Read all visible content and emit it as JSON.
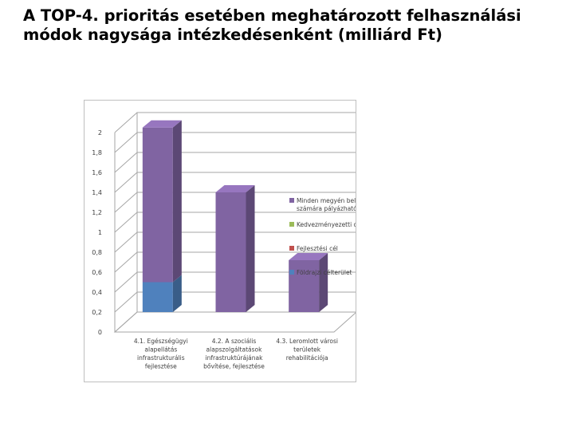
{
  "title": "A TOP-4. prioritás esetében meghatározott felhasználási módok nagysága intézkedésenként (milliárd Ft)",
  "chart_data": {
    "type": "bar",
    "stacked": true,
    "three_d": true,
    "categories": [
      [
        "4.1. Egészségügyi",
        "alapellátás",
        "infrastrukturális",
        "fejlesztése"
      ],
      [
        "4.2. A szociális",
        "alapszolgáltatások",
        "infrastruktúrájának",
        "bővítése, fejlesztése"
      ],
      [
        "4.3. Leromlott városi",
        "területek",
        "rehabilitációja"
      ]
    ],
    "series": [
      {
        "name": "Földrajzi célterület",
        "color": "#4f81bd",
        "values": [
          0.3,
          0,
          0
        ]
      },
      {
        "name": "Fejlesztési cél",
        "color": "#c0504d",
        "values": [
          0,
          0,
          0
        ]
      },
      {
        "name": "Kedvezményezetti csoport",
        "color": "#9bbb59",
        "values": [
          0,
          0,
          0
        ]
      },
      {
        "name": "Minden megyén belüli jogosult számára pályázható",
        "color": "#8064a2",
        "values": [
          1.55,
          1.2,
          0.52
        ]
      }
    ],
    "legend_order": [
      3,
      2,
      1,
      0
    ],
    "ylim": [
      0,
      2
    ],
    "yticks": [
      "0",
      "0,2",
      "0,4",
      "0,6",
      "0,8",
      "1",
      "1,2",
      "1,4",
      "1,6",
      "1,8",
      "2"
    ],
    "grid": true,
    "legend_position": "right"
  }
}
